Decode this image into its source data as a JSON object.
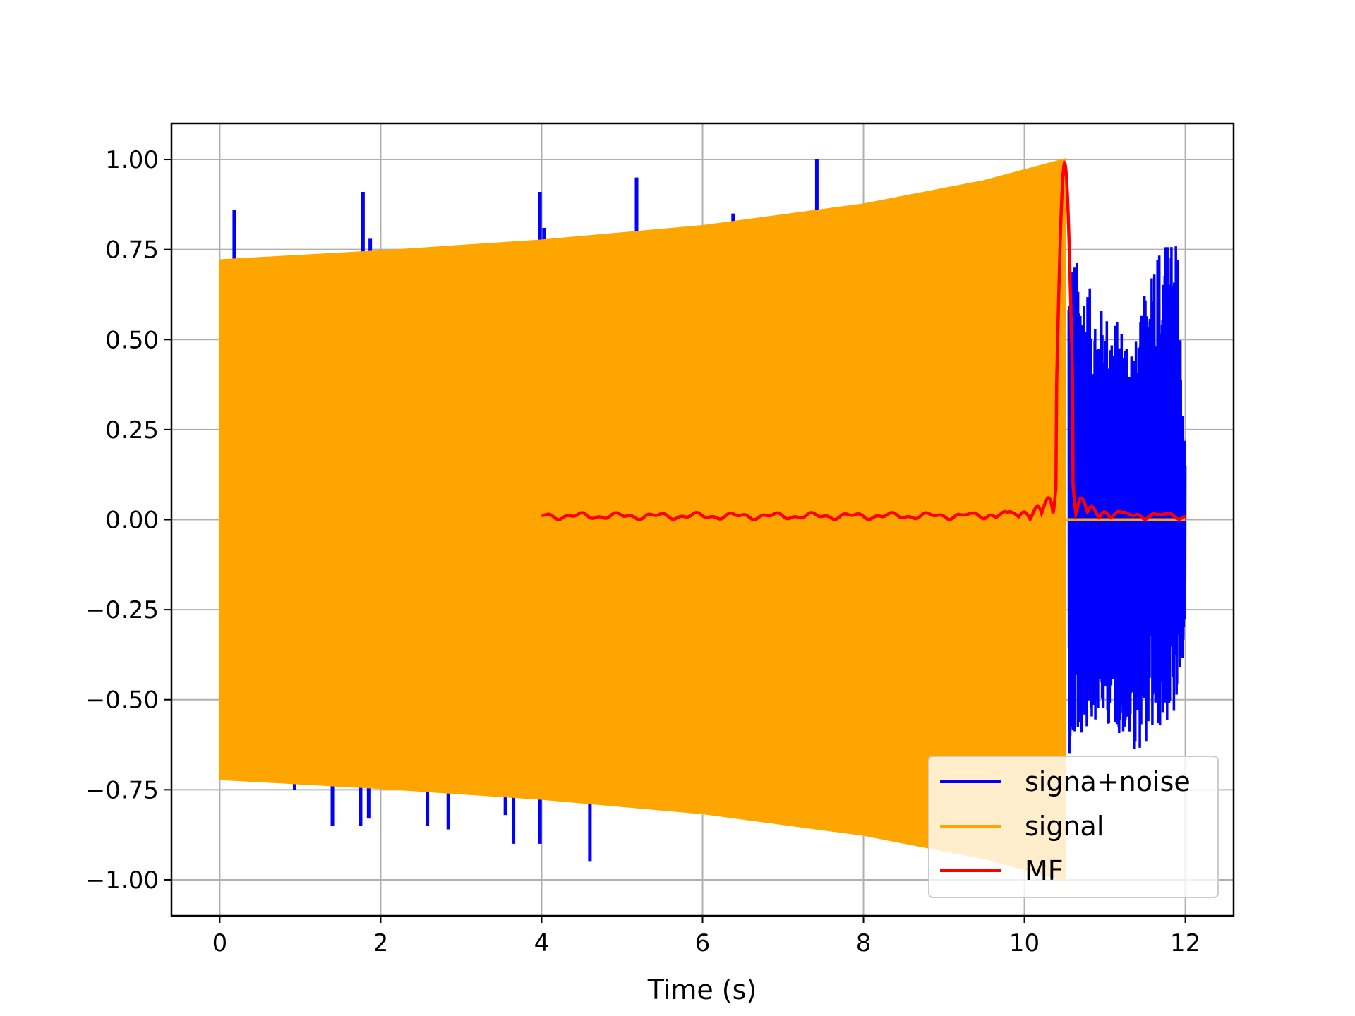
{
  "chart_data": {
    "type": "line",
    "title": "",
    "xlabel": "Time (s)",
    "ylabel": "",
    "xlim": [
      -0.6,
      12.6
    ],
    "ylim": [
      -1.1,
      1.1
    ],
    "xticks": [
      0,
      2,
      4,
      6,
      8,
      10,
      12
    ],
    "xtick_labels": [
      "0",
      "2",
      "4",
      "6",
      "8",
      "10",
      "12"
    ],
    "yticks": [
      1.0,
      0.75,
      0.5,
      0.25,
      0.0,
      -0.25,
      -0.5,
      -0.75,
      -1.0
    ],
    "ytick_labels": [
      "1.00",
      "0.75",
      "0.50",
      "0.25",
      "0.00",
      "−0.25",
      "−0.50",
      "−0.75",
      "−1.00"
    ],
    "grid": true,
    "legend_position": "lower-right",
    "colors": {
      "signal_noise": "#0000ff",
      "signal": "#ffa500",
      "mf": "#ff0000"
    },
    "series": [
      {
        "name": "signa+noise",
        "color": "#0000ff",
        "description_points": {
          "spikes": [
            {
              "x": 0.18,
              "y": 0.86
            },
            {
              "x": 1.78,
              "y": 0.91
            },
            {
              "x": 1.87,
              "y": 0.78
            },
            {
              "x": 3.98,
              "y": 0.91
            },
            {
              "x": 4.03,
              "y": 0.81
            },
            {
              "x": 5.18,
              "y": 0.95
            },
            {
              "x": 6.38,
              "y": 0.85
            },
            {
              "x": 7.42,
              "y": 1.0
            },
            {
              "x": 1.4,
              "y": 0.74
            },
            {
              "x": 1.4,
              "y": -0.85
            },
            {
              "x": 1.75,
              "y": -0.85
            },
            {
              "x": 1.85,
              "y": -0.83
            },
            {
              "x": 2.58,
              "y": -0.85
            },
            {
              "x": 2.84,
              "y": -0.86
            },
            {
              "x": 3.55,
              "y": -0.82
            },
            {
              "x": 3.65,
              "y": -0.9
            },
            {
              "x": 3.98,
              "y": -0.9
            },
            {
              "x": 4.6,
              "y": -0.95
            },
            {
              "x": 0.93,
              "y": -0.75
            },
            {
              "x": 0.53,
              "y": -0.72
            }
          ],
          "noise_start": 10.55,
          "noise_end": 12.0,
          "noise_envelope": [
            {
              "x": 10.6,
              "hi": 0.75,
              "lo": -0.65
            },
            {
              "x": 10.9,
              "hi": 0.6,
              "lo": -0.55
            },
            {
              "x": 11.2,
              "hi": 0.55,
              "lo": -0.6
            },
            {
              "x": 11.4,
              "hi": 0.5,
              "lo": -0.65
            },
            {
              "x": 11.6,
              "hi": 0.77,
              "lo": -0.6
            },
            {
              "x": 11.9,
              "hi": 0.78,
              "lo": -0.55
            },
            {
              "x": 12.0,
              "hi": 0.2,
              "lo": -0.3
            }
          ]
        }
      },
      {
        "name": "signal",
        "color": "#ffa500",
        "envelope": [
          {
            "x": 0.0,
            "y": 0.72
          },
          {
            "x": 2.0,
            "y": 0.745
          },
          {
            "x": 4.0,
            "y": 0.775
          },
          {
            "x": 6.0,
            "y": 0.815
          },
          {
            "x": 8.0,
            "y": 0.875
          },
          {
            "x": 9.5,
            "y": 0.94
          },
          {
            "x": 10.5,
            "y": 1.0
          }
        ],
        "after_end": 0.0
      },
      {
        "name": "MF",
        "color": "#ff0000",
        "x_start": 4.0,
        "x_end": 12.0,
        "peak": {
          "x": 10.5,
          "y": 1.0
        },
        "baseline": 0.01
      }
    ]
  }
}
